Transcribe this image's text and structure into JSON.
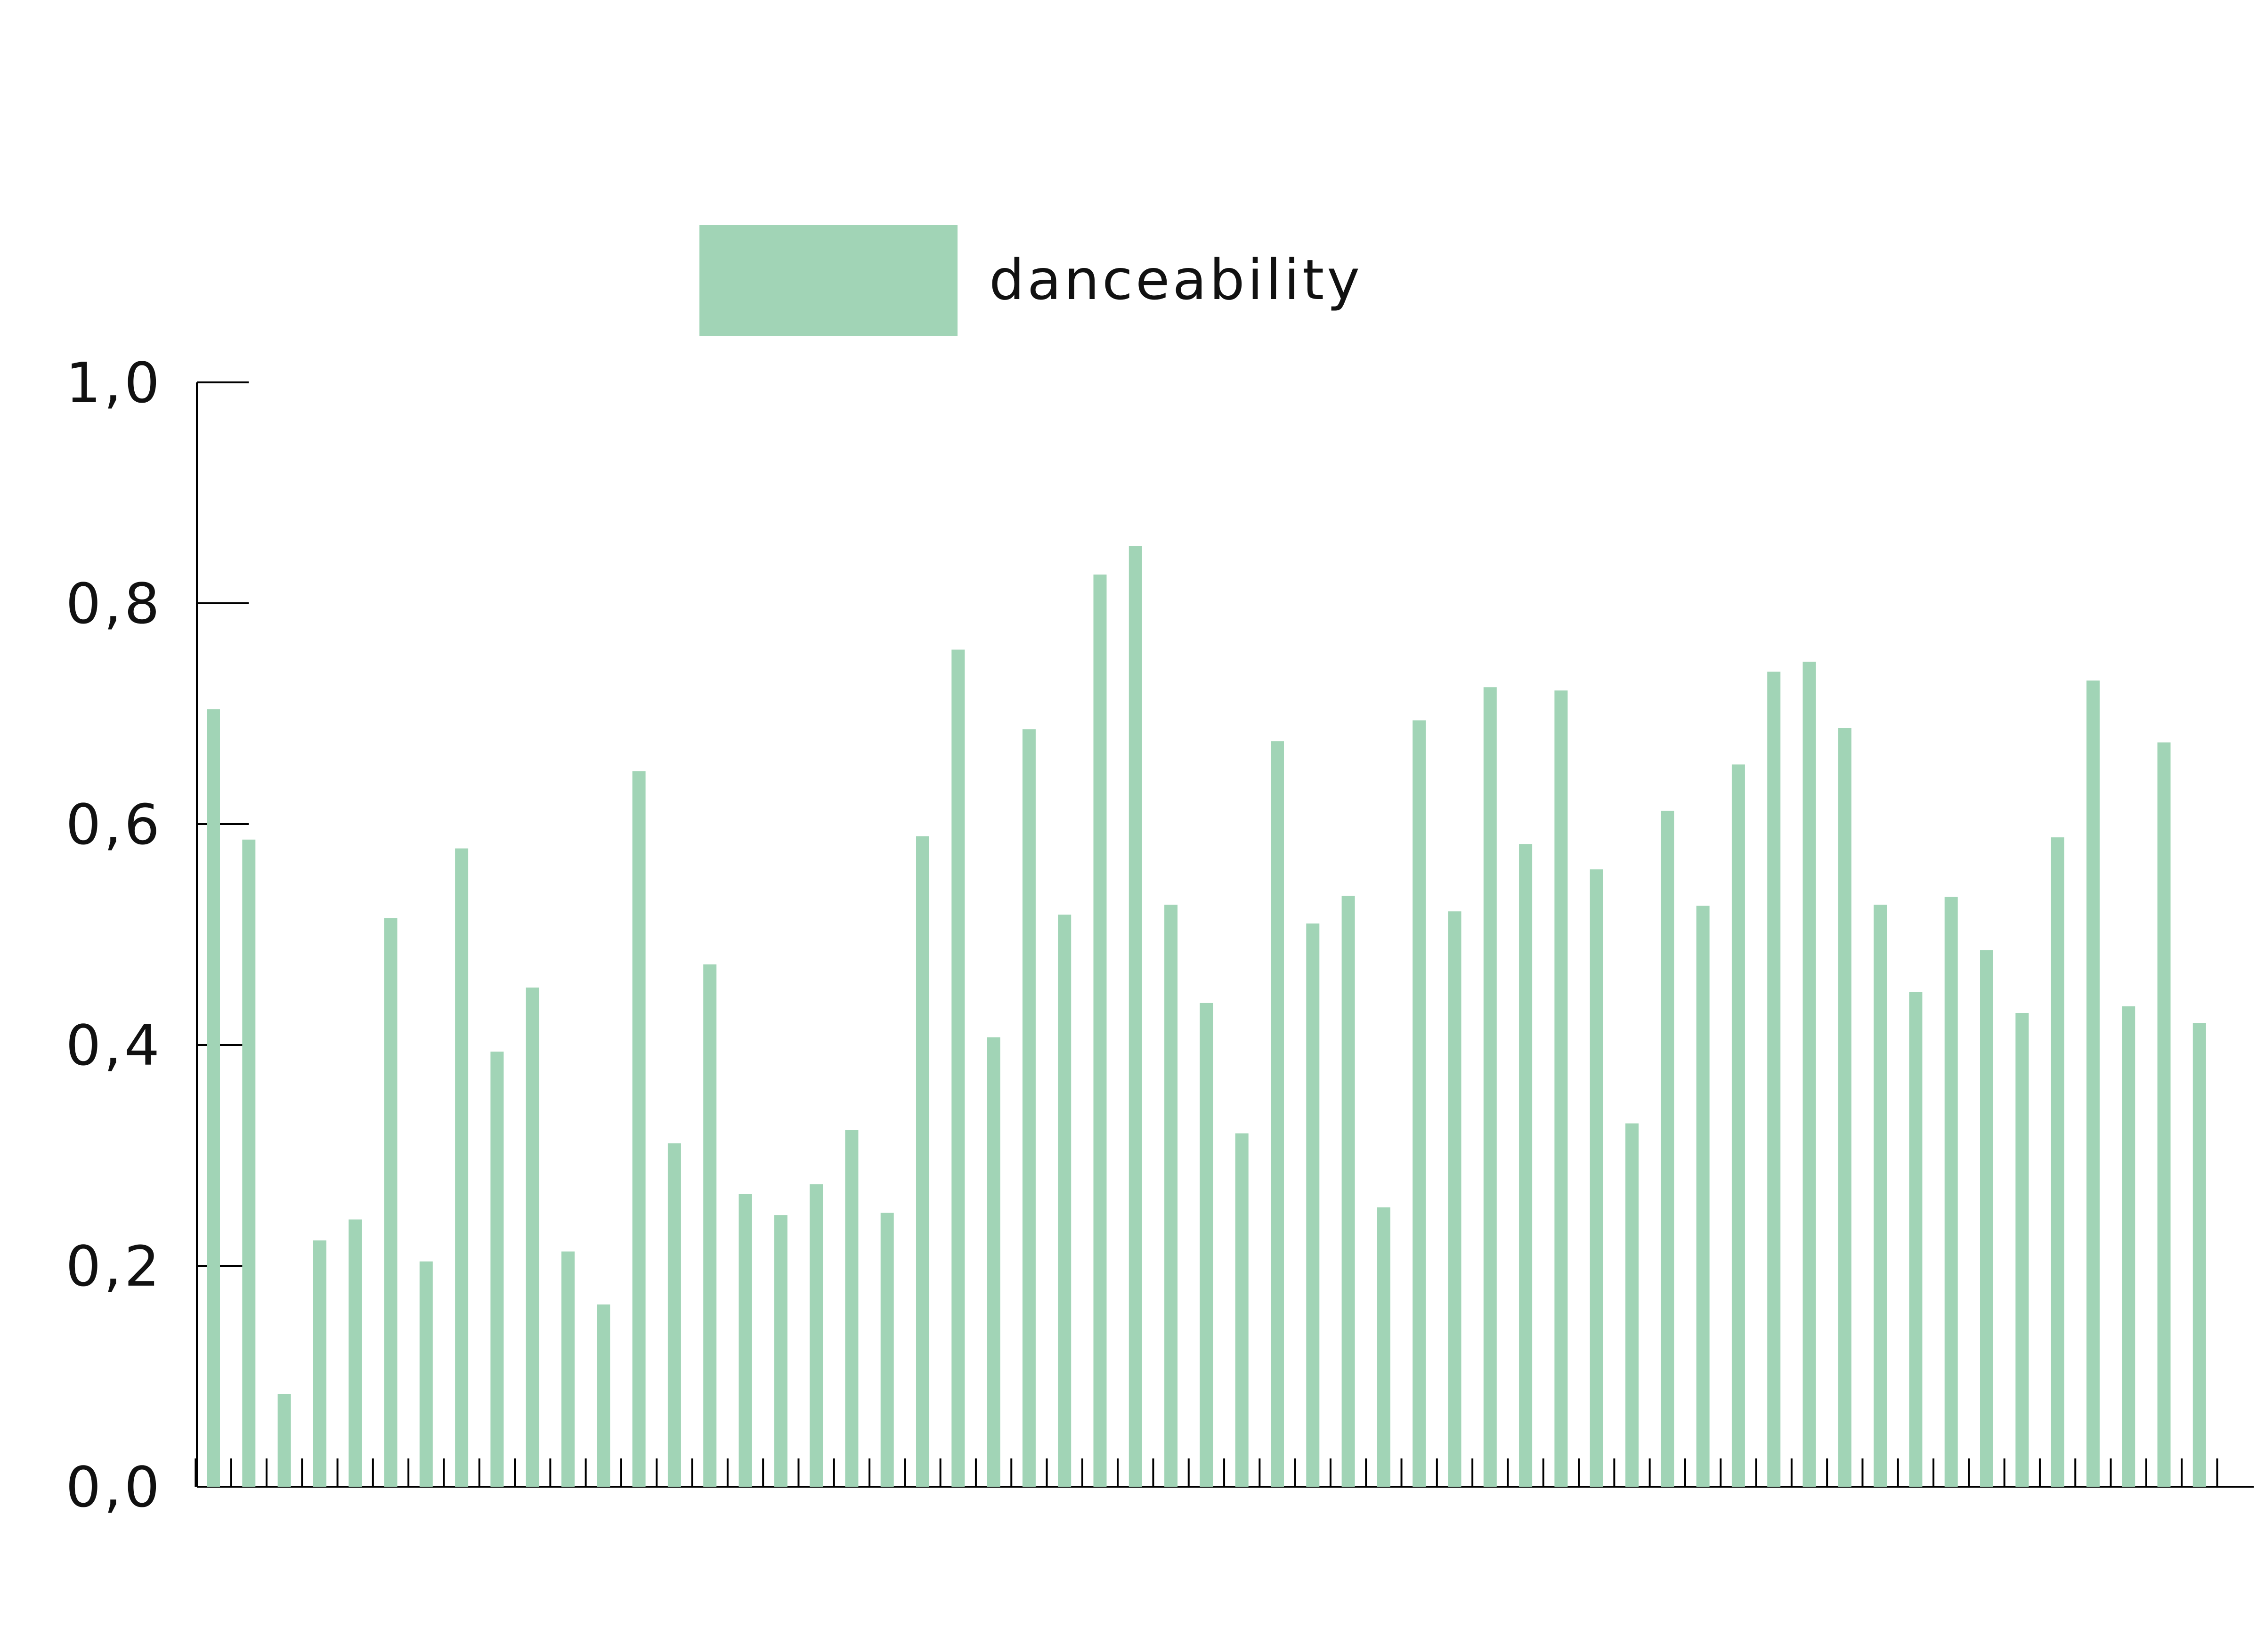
{
  "colors": {
    "bar": "#a1d4b6",
    "axis": "#000000",
    "text": "#111111",
    "background": "#ffffff"
  },
  "chart_data": {
    "type": "bar",
    "title": "",
    "xlabel": "",
    "ylabel": "",
    "ylim": [
      0,
      1.0
    ],
    "ytick_values": [
      0,
      0.2,
      0.4,
      0.6,
      0.8,
      1.0
    ],
    "ytick_labels": [
      "0,0",
      "0,2",
      "0,4",
      "0,6",
      "0,8",
      "1,0"
    ],
    "grid": false,
    "legend_position": "top-center",
    "series": [
      {
        "name": "danceability",
        "values": [
          0.704,
          0.586,
          0.084,
          0.223,
          0.242,
          0.515,
          0.204,
          0.578,
          0.394,
          0.452,
          0.213,
          0.165,
          0.648,
          0.311,
          0.473,
          0.265,
          0.246,
          0.274,
          0.323,
          0.248,
          0.589,
          0.758,
          0.407,
          0.686,
          0.518,
          0.826,
          0.852,
          0.527,
          0.438,
          0.32,
          0.675,
          0.51,
          0.535,
          0.253,
          0.694,
          0.521,
          0.724,
          0.582,
          0.721,
          0.559,
          0.329,
          0.612,
          0.526,
          0.654,
          0.738,
          0.747,
          0.687,
          0.527,
          0.448,
          0.534,
          0.486,
          0.429,
          0.588,
          0.73,
          0.435,
          0.674,
          0.42
        ]
      }
    ]
  }
}
